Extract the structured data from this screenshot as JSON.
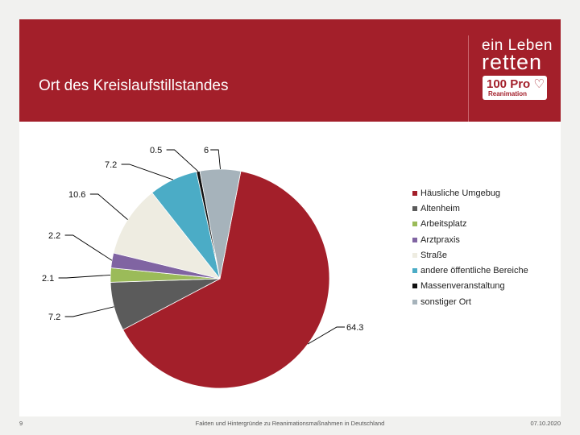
{
  "header": {
    "title": "Ort des Kreislaufstillstandes",
    "logo_line1": "ein Leben",
    "logo_line2": "retten",
    "logo_badge_main": "100 Pro ♡",
    "logo_badge_sub": "Reanimation",
    "background_color": "#a31f2a"
  },
  "chart_data": {
    "type": "pie",
    "title": "Ort des Kreislaufstillstandes",
    "legend_position": "right",
    "slices": [
      {
        "label": "Häusliche Umgebug",
        "value": 64.3,
        "display": "64.3",
        "color": "#a31f2a"
      },
      {
        "label": "Altenheim",
        "value": 7.2,
        "display": "7.2",
        "color": "#5b5b5b"
      },
      {
        "label": "Arbeitsplatz",
        "value": 2.1,
        "display": "2.1",
        "color": "#9bbb59"
      },
      {
        "label": "Arztpraxis",
        "value": 2.2,
        "display": "2.2",
        "color": "#8064a2"
      },
      {
        "label": "Straße",
        "value": 10.6,
        "display": "10.6",
        "color": "#eeece1"
      },
      {
        "label": "andere öffentliche Bereiche",
        "value": 7.2,
        "display": "7.2",
        "color": "#4bacc6"
      },
      {
        "label": "Massenveranstaltung",
        "value": 0.5,
        "display": "0.5",
        "color": "#111111"
      },
      {
        "label": "sonstiger Ort",
        "value": 6,
        "display": "6",
        "color": "#a6b3bb"
      }
    ]
  },
  "footer": {
    "page_number": "9",
    "source": "Fakten und Hintergründe zu Reanimationsmaßnahmen in Deutschland",
    "date": "07.10.2020"
  }
}
